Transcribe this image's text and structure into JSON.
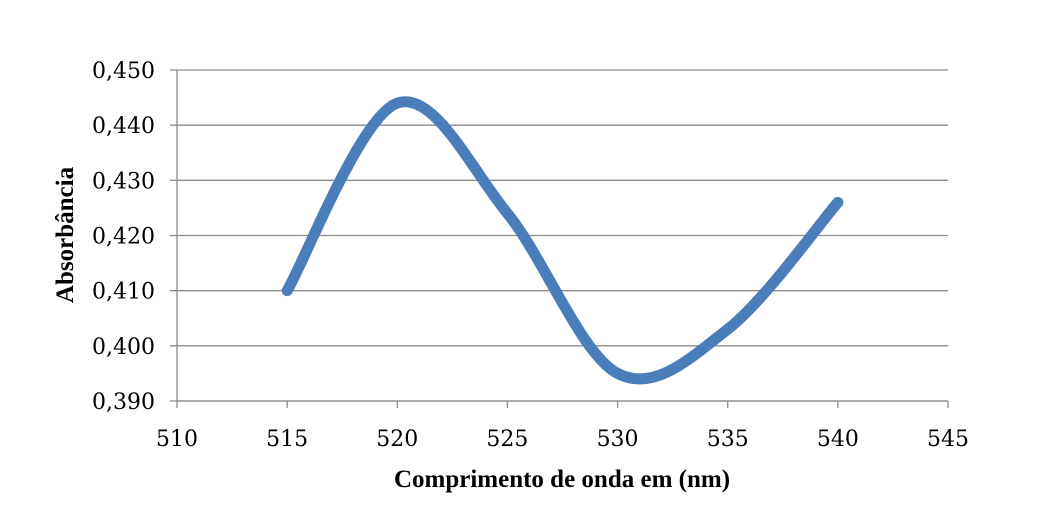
{
  "chart_data": {
    "type": "line",
    "title": "",
    "xlabel": "Comprimento de onda em (nm)",
    "ylabel": "Absorbância",
    "xlim": [
      510,
      545
    ],
    "ylim": [
      0.39,
      0.45
    ],
    "x_ticks": [
      "510",
      "515",
      "520",
      "525",
      "530",
      "535",
      "540",
      "545"
    ],
    "y_ticks": [
      "0,390",
      "0,400",
      "0,410",
      "0,420",
      "0,430",
      "0,440",
      "0,450"
    ],
    "grid": "horizontal",
    "legend": "none",
    "smooth": true,
    "series": [
      {
        "color": "#4a7ebb",
        "x": [
          515,
          520,
          525,
          530,
          535,
          540
        ],
        "y": [
          0.41,
          0.444,
          0.424,
          0.395,
          0.403,
          0.426
        ]
      }
    ]
  }
}
